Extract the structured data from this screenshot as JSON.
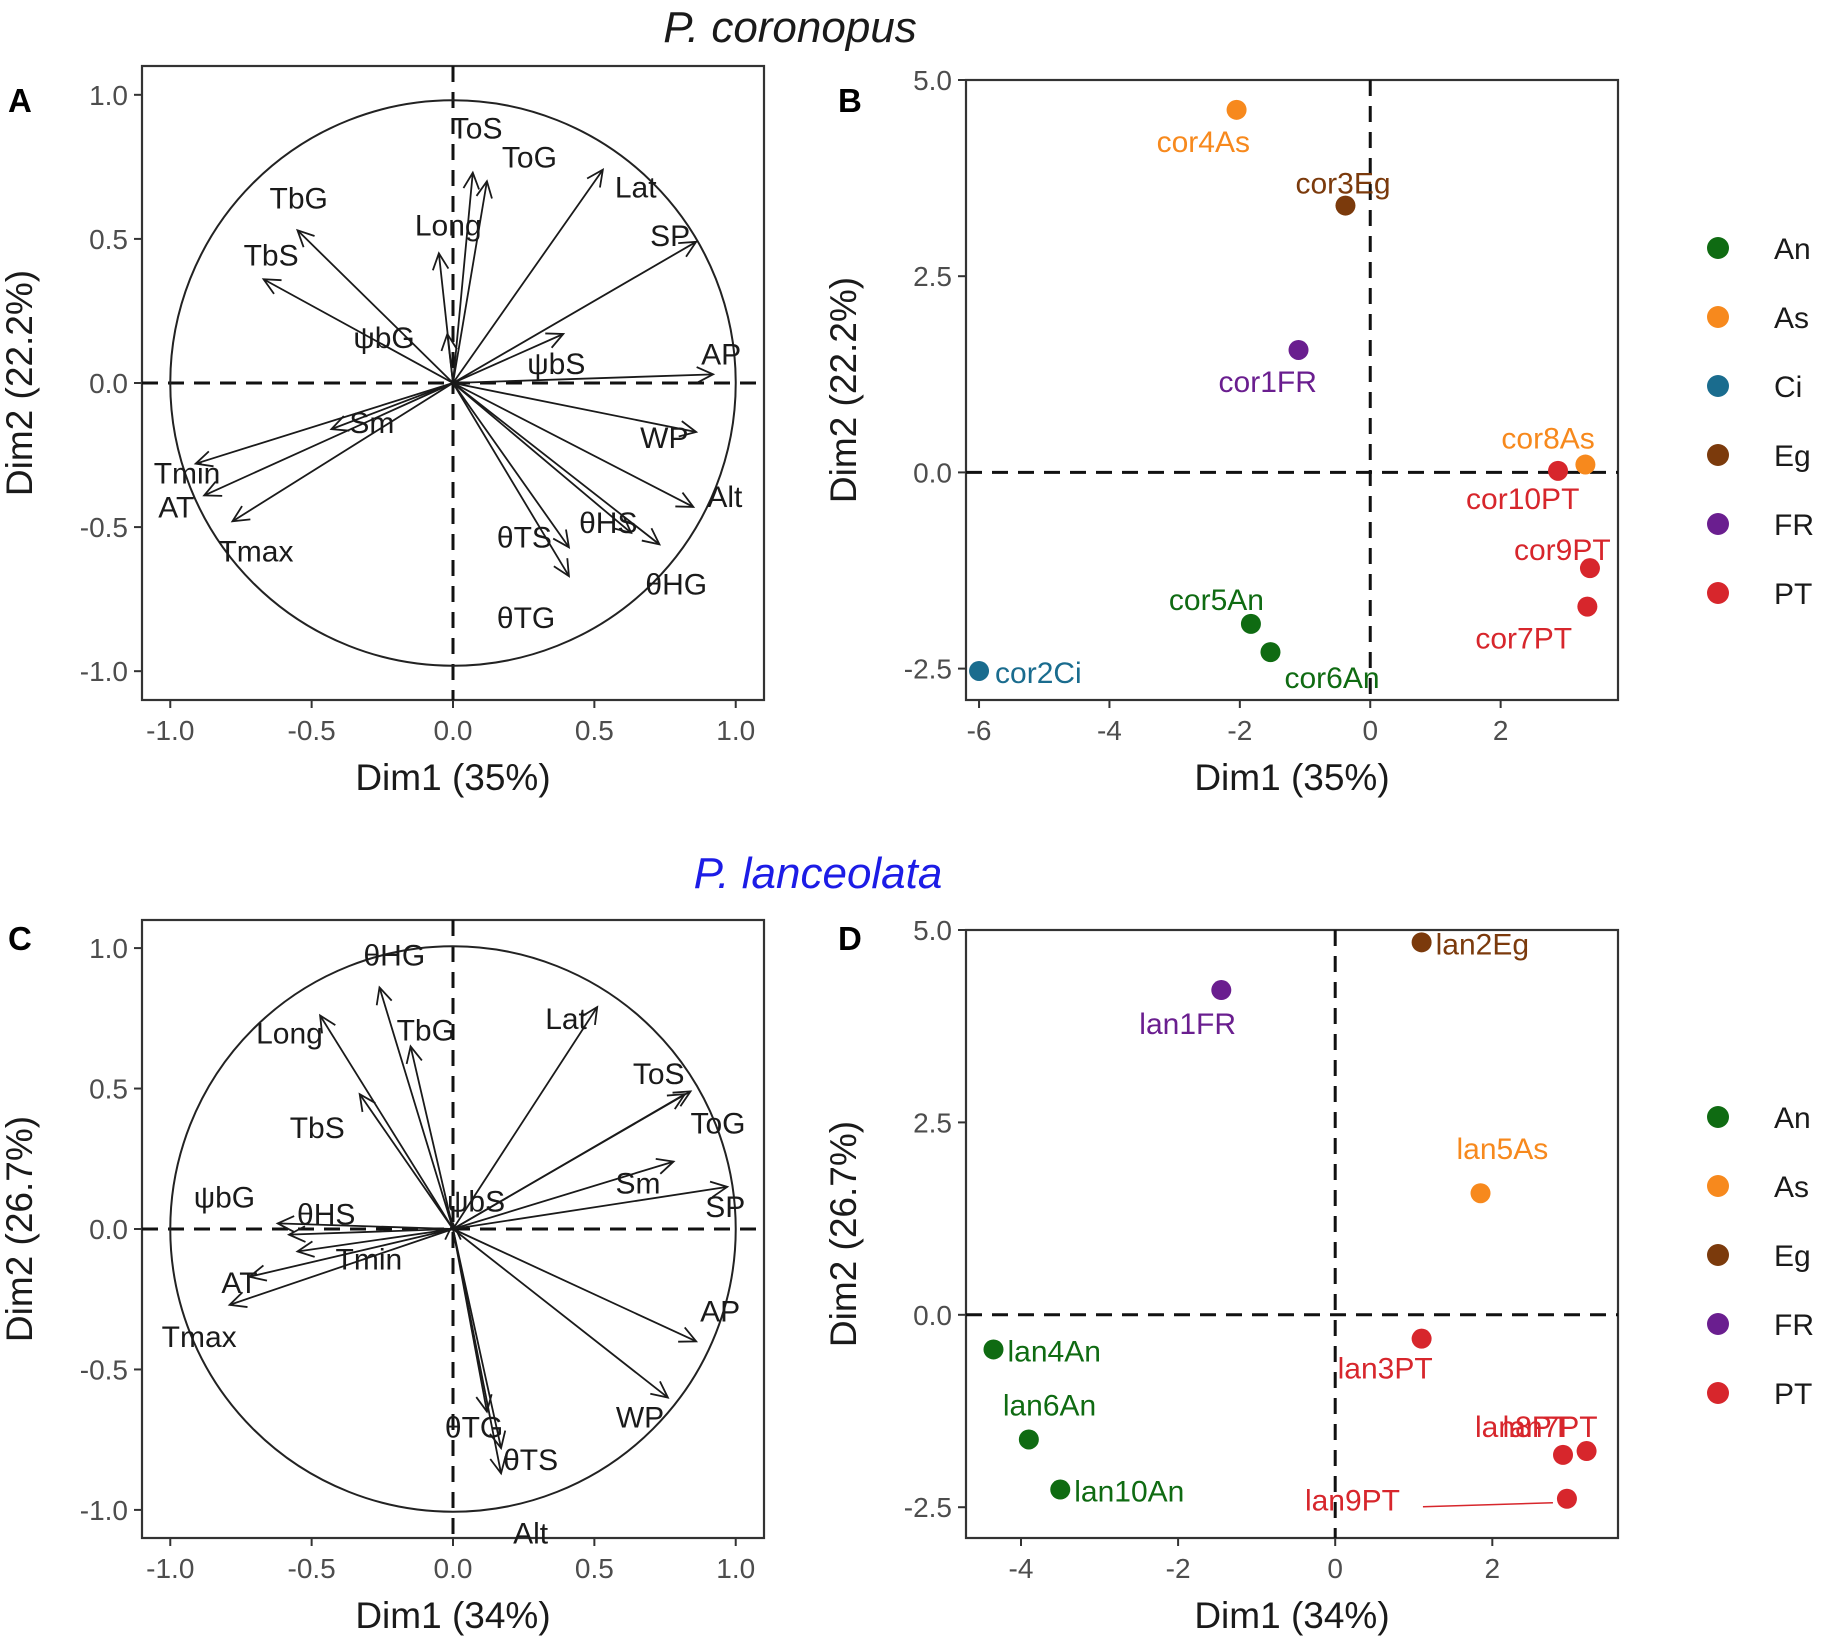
{
  "species": [
    {
      "name": "P. coronopus",
      "color": "#1a1a1a"
    },
    {
      "name": "P. lanceolata",
      "color": "#1c1ce6"
    }
  ],
  "legends": [
    {
      "items": [
        {
          "label": "An",
          "color": "#0f6b12"
        },
        {
          "label": "As",
          "color": "#f7891d"
        },
        {
          "label": "Ci",
          "color": "#1a6c8e"
        },
        {
          "label": "Eg",
          "color": "#7b3a0c"
        },
        {
          "label": "FR",
          "color": "#6a1e8f"
        },
        {
          "label": "PT",
          "color": "#d7262c"
        }
      ]
    },
    {
      "items": [
        {
          "label": "An",
          "color": "#0f6b12"
        },
        {
          "label": "As",
          "color": "#f7891d"
        },
        {
          "label": "Eg",
          "color": "#7b3a0c"
        },
        {
          "label": "FR",
          "color": "#6a1e8f"
        },
        {
          "label": "PT",
          "color": "#d7262c"
        }
      ]
    }
  ],
  "chart_data": [
    {
      "panel": "A",
      "type": "scatter",
      "subtype": "pca-variables-correlation-circle",
      "xlabel": "Dim1 (35%)",
      "ylabel": "Dim2 (22.2%)",
      "xlim": [
        -1.1,
        1.1
      ],
      "ylim": [
        -1.1,
        1.1
      ],
      "xticks": [
        -1.0,
        -0.5,
        0.0,
        0.5,
        1.0
      ],
      "xtick_labels": [
        "-1.0",
        "-0.5",
        "0.0",
        "0.5",
        "1.0"
      ],
      "yticks": [
        -1.0,
        -0.5,
        0.0,
        0.5,
        1.0
      ],
      "ytick_labels": [
        "-1.0",
        "-0.5",
        "0.0",
        "0.5",
        "1.0"
      ],
      "vectors": [
        {
          "name": "ToS",
          "x": 0.07,
          "y": 0.73
        },
        {
          "name": "ToG",
          "x": 0.12,
          "y": 0.7
        },
        {
          "name": "TbG",
          "x": -0.55,
          "y": 0.53
        },
        {
          "name": "Lat",
          "x": 0.53,
          "y": 0.74
        },
        {
          "name": "Long",
          "x": -0.05,
          "y": 0.45
        },
        {
          "name": "TbS",
          "x": -0.67,
          "y": 0.36
        },
        {
          "name": "ψbG",
          "x": -0.02,
          "y": 0.17
        },
        {
          "name": "SP",
          "x": 0.86,
          "y": 0.49
        },
        {
          "name": "ψbS",
          "x": 0.39,
          "y": 0.17
        },
        {
          "name": "AP",
          "x": 0.92,
          "y": 0.03
        },
        {
          "name": "Sm",
          "x": -0.43,
          "y": -0.16
        },
        {
          "name": "WP",
          "x": 0.86,
          "y": -0.17
        },
        {
          "name": "Tmin",
          "x": -0.91,
          "y": -0.28
        },
        {
          "name": "AT",
          "x": -0.88,
          "y": -0.39
        },
        {
          "name": "Alt",
          "x": 0.85,
          "y": -0.43
        },
        {
          "name": "θHS",
          "x": 0.63,
          "y": -0.52
        },
        {
          "name": "θHG",
          "x": 0.73,
          "y": -0.56
        },
        {
          "name": "θTS",
          "x": 0.41,
          "y": -0.57
        },
        {
          "name": "Tmax",
          "x": -0.78,
          "y": -0.48
        },
        {
          "name": "θTG",
          "x": 0.41,
          "y": -0.67
        }
      ]
    },
    {
      "panel": "B",
      "type": "scatter",
      "subtype": "pca-individuals",
      "xlabel": "Dim1 (35%)",
      "ylabel": "Dim2 (22.2%)",
      "xlim": [
        -6.2,
        3.8
      ],
      "ylim": [
        -2.9,
        5.0
      ],
      "xticks": [
        -6,
        -4,
        -2,
        0,
        2
      ],
      "xtick_labels": [
        "-6",
        "-4",
        "-2",
        "0",
        "2"
      ],
      "yticks": [
        -2.5,
        0.0,
        2.5,
        5.0
      ],
      "ytick_labels": [
        "-2.5",
        "0.0",
        "2.5",
        "5.0"
      ],
      "points": [
        {
          "name": "cor4As",
          "group": "As",
          "x": -2.05,
          "y": 4.62
        },
        {
          "name": "cor3Eg",
          "group": "Eg",
          "x": -0.38,
          "y": 3.4
        },
        {
          "name": "cor1FR",
          "group": "FR",
          "x": -1.1,
          "y": 1.56
        },
        {
          "name": "cor8As",
          "group": "As",
          "x": 3.3,
          "y": 0.1
        },
        {
          "name": "cor10PT",
          "group": "PT",
          "x": 2.88,
          "y": 0.02
        },
        {
          "name": "cor9PT",
          "group": "PT",
          "x": 3.37,
          "y": -1.22
        },
        {
          "name": "cor7PT",
          "group": "PT",
          "x": 3.33,
          "y": -1.71
        },
        {
          "name": "cor5An",
          "group": "An",
          "x": -1.83,
          "y": -1.93
        },
        {
          "name": "cor6An",
          "group": "An",
          "x": -1.53,
          "y": -2.29
        },
        {
          "name": "cor2Ci",
          "group": "Ci",
          "x": -6.0,
          "y": -2.53
        }
      ]
    },
    {
      "panel": "C",
      "type": "scatter",
      "subtype": "pca-variables-correlation-circle",
      "xlabel": "Dim1 (34%)",
      "ylabel": "Dim2 (26.7%)",
      "xlim": [
        -1.1,
        1.1
      ],
      "ylim": [
        -1.1,
        1.1
      ],
      "xticks": [
        -1.0,
        -0.5,
        0.0,
        0.5,
        1.0
      ],
      "xtick_labels": [
        "-1.0",
        "-0.5",
        "0.0",
        "0.5",
        "1.0"
      ],
      "yticks": [
        -1.0,
        -0.5,
        0.0,
        0.5,
        1.0
      ],
      "ytick_labels": [
        "-1.0",
        "-0.5",
        "0.0",
        "0.5",
        "1.0"
      ],
      "vectors": [
        {
          "name": "θHG",
          "x": -0.26,
          "y": 0.86
        },
        {
          "name": "Long",
          "x": -0.47,
          "y": 0.76
        },
        {
          "name": "TbG",
          "x": -0.15,
          "y": 0.65
        },
        {
          "name": "Lat",
          "x": 0.51,
          "y": 0.79
        },
        {
          "name": "ToS",
          "x": 0.82,
          "y": 0.48
        },
        {
          "name": "ToG",
          "x": 0.84,
          "y": 0.49
        },
        {
          "name": "TbS",
          "x": -0.33,
          "y": 0.48
        },
        {
          "name": "Sm",
          "x": 0.78,
          "y": 0.24
        },
        {
          "name": "SP",
          "x": 0.97,
          "y": 0.15
        },
        {
          "name": "ψbS",
          "x": 0.0,
          "y": 0.02
        },
        {
          "name": "ψbG",
          "x": -0.62,
          "y": 0.02
        },
        {
          "name": "θHS",
          "x": -0.58,
          "y": -0.02
        },
        {
          "name": "AT",
          "x": -0.72,
          "y": -0.17
        },
        {
          "name": "Tmin",
          "x": -0.55,
          "y": -0.08
        },
        {
          "name": "Tmax",
          "x": -0.79,
          "y": -0.27
        },
        {
          "name": "AP",
          "x": 0.86,
          "y": -0.4
        },
        {
          "name": "WP",
          "x": 0.76,
          "y": -0.6
        },
        {
          "name": "θTG",
          "x": 0.12,
          "y": -0.65
        },
        {
          "name": "θTS",
          "x": 0.17,
          "y": -0.78
        },
        {
          "name": "Alt",
          "x": 0.17,
          "y": -0.87
        }
      ]
    },
    {
      "panel": "D",
      "type": "scatter",
      "subtype": "pca-individuals",
      "xlabel": "Dim1 (34%)",
      "ylabel": "Dim2 (26.7%)",
      "xlim": [
        -4.7,
        3.6
      ],
      "ylim": [
        -2.9,
        5.0
      ],
      "xticks": [
        -4,
        -2,
        0,
        2
      ],
      "xtick_labels": [
        "-4",
        "-2",
        "0",
        "2"
      ],
      "yticks": [
        -2.5,
        0.0,
        2.5,
        5.0
      ],
      "ytick_labels": [
        "-2.5",
        "0.0",
        "2.5",
        "5.0"
      ],
      "points": [
        {
          "name": "lan2Eg",
          "group": "Eg",
          "x": 1.1,
          "y": 4.84
        },
        {
          "name": "lan1FR",
          "group": "FR",
          "x": -1.45,
          "y": 4.22
        },
        {
          "name": "lan5As",
          "group": "As",
          "x": 1.85,
          "y": 1.58
        },
        {
          "name": "lan3PT",
          "group": "PT",
          "x": 1.1,
          "y": -0.31
        },
        {
          "name": "lan4An",
          "group": "An",
          "x": -4.35,
          "y": -0.45
        },
        {
          "name": "lan6An",
          "group": "An",
          "x": -3.9,
          "y": -1.62
        },
        {
          "name": "lan7PT",
          "group": "PT",
          "x": 3.2,
          "y": -1.77
        },
        {
          "name": "lan8PT",
          "group": "PT",
          "x": 2.9,
          "y": -1.82
        },
        {
          "name": "lan10An",
          "group": "An",
          "x": -3.5,
          "y": -2.27
        },
        {
          "name": "lan9PT",
          "group": "PT",
          "x": 2.95,
          "y": -2.39
        }
      ]
    }
  ]
}
